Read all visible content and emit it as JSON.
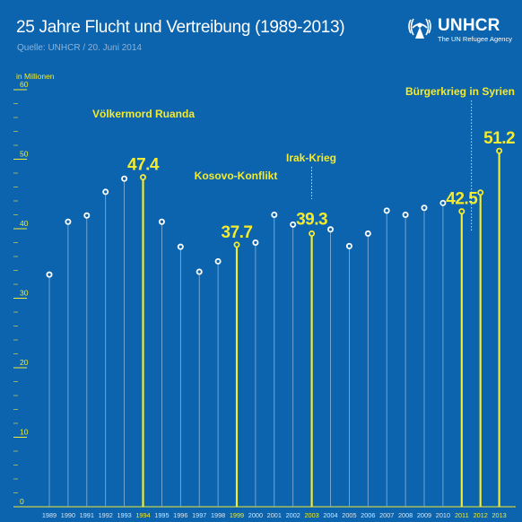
{
  "title": "25 Jahre Flucht und Vertreibung (1989-2013)",
  "subtitle": "Quelle: UNHCR / 20. Juni 2014",
  "logo": {
    "name": "UNHCR",
    "tagline": "The UN Refugee Agency",
    "icon": "unhcr-emblem-icon"
  },
  "colors": {
    "background": "#0b64ad",
    "highlight": "#f4ea2f",
    "marker": "#ffffff",
    "line": "#8db4db",
    "label": "#d9e6f3"
  },
  "chart_data": {
    "type": "scatter",
    "ylabel": "in Millionen",
    "ylim": [
      0,
      60
    ],
    "yticks": [
      0,
      10,
      20,
      30,
      40,
      50,
      60
    ],
    "x": [
      "1989",
      "1990",
      "1991",
      "1992",
      "1993",
      "1994",
      "1995",
      "1996",
      "1997",
      "1998",
      "1999",
      "2000",
      "2001",
      "2002",
      "2003",
      "2004",
      "2005",
      "2006",
      "2007",
      "2008",
      "2009",
      "2010",
      "2011",
      "2012",
      "2013"
    ],
    "values": [
      33.4,
      41.0,
      41.9,
      45.3,
      47.2,
      47.4,
      41.0,
      37.4,
      33.8,
      35.3,
      37.7,
      38.0,
      42.0,
      40.6,
      39.3,
      39.9,
      37.5,
      39.3,
      42.6,
      42.0,
      43.0,
      43.7,
      42.5,
      45.2,
      51.2
    ],
    "highlighted": [
      "1994",
      "1999",
      "2003",
      "2011",
      "2012",
      "2013"
    ],
    "data_labels": [
      {
        "x": "1994",
        "label": "47.4"
      },
      {
        "x": "1999",
        "label": "37.7"
      },
      {
        "x": "2003",
        "label": "39.3"
      },
      {
        "x": "2011",
        "label": "42.5"
      },
      {
        "x": "2013",
        "label": "51.2"
      }
    ],
    "annotations": [
      {
        "x": "1994",
        "text": "Völkermord Ruanda"
      },
      {
        "x": "1999",
        "text": "Kosovo-Konflikt"
      },
      {
        "x": "2003",
        "text": "Irak-Krieg"
      },
      {
        "x": "2012",
        "text": "Bürgerkrieg in Syrien"
      }
    ]
  }
}
